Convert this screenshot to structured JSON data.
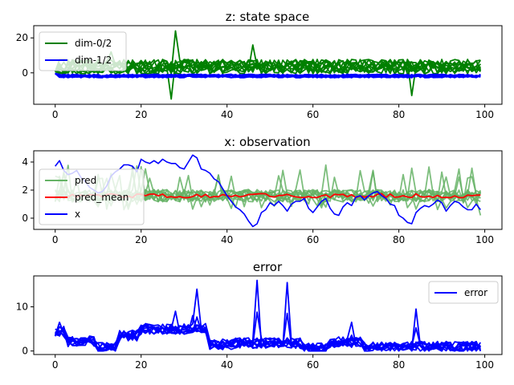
{
  "chart_data": [
    {
      "type": "line",
      "title": "z: state space",
      "xlim": [
        -5,
        104
      ],
      "ylim": [
        -18,
        27
      ],
      "xticks": [
        0,
        20,
        40,
        60,
        80,
        100
      ],
      "yticks": [
        0,
        20
      ],
      "legend": {
        "position": "upper-left",
        "entries": [
          {
            "label": "dim-0/2",
            "color": "#008000"
          },
          {
            "label": "dim-1/2",
            "color": "#0000ff"
          }
        ]
      },
      "series": [
        {
          "name": "dim-0/2",
          "color": "#008000",
          "count": 10,
          "center": 3.5,
          "spread": 4.2,
          "spikes": [
            [
              28,
              24
            ],
            [
              27,
              -15
            ],
            [
              13,
              12
            ],
            [
              46,
              16
            ],
            [
              83,
              -13
            ]
          ]
        },
        {
          "name": "dim-1/2",
          "color": "#0000ff",
          "count": 10,
          "center": -1.8,
          "spread": 1.0,
          "spikes": []
        }
      ]
    },
    {
      "type": "line",
      "title": "x: observation",
      "xlim": [
        -5,
        104
      ],
      "ylim": [
        -0.8,
        4.8
      ],
      "xticks": [
        0,
        20,
        40,
        60,
        80,
        100
      ],
      "yticks": [
        0,
        2,
        4
      ],
      "legend": {
        "position": "center-left",
        "entries": [
          {
            "label": "pred",
            "color": "#66b366"
          },
          {
            "label": "pred_mean",
            "color": "#ff0000"
          },
          {
            "label": "x",
            "color": "#0000ff"
          }
        ]
      },
      "pred_count": 10,
      "pred_color": "#66b366",
      "pred_mean_color": "#ff0000",
      "x_color": "#0000ff",
      "pred_mean_level": 1.6,
      "x_values": [
        3.7,
        4.1,
        3.4,
        3.1,
        3.2,
        3.4,
        2.9,
        2.6,
        2.2,
        2.0,
        1.8,
        1.9,
        2.3,
        3.0,
        3.3,
        3.5,
        3.8,
        3.8,
        3.7,
        3.3,
        4.2,
        4.0,
        3.9,
        4.1,
        3.9,
        4.2,
        4.0,
        3.9,
        3.9,
        3.6,
        3.5,
        4.0,
        4.5,
        4.3,
        3.5,
        3.4,
        3.2,
        2.8,
        2.6,
        2.1,
        1.6,
        1.2,
        0.8,
        0.6,
        0.3,
        -0.2,
        -0.6,
        -0.4,
        0.4,
        0.6,
        1.1,
        0.9,
        1.2,
        0.9,
        0.5,
        1.0,
        1.2,
        1.2,
        1.4,
        0.7,
        0.4,
        0.8,
        1.2,
        1.4,
        0.7,
        0.3,
        0.2,
        0.8,
        1.1,
        0.9,
        1.5,
        1.6,
        1.3,
        1.6,
        1.8,
        1.9,
        1.6,
        1.4,
        1.0,
        0.9,
        0.2,
        0.0,
        -0.3,
        -0.4,
        0.4,
        0.7,
        0.9,
        0.8,
        1.0,
        1.3,
        1.1,
        0.5,
        0.9,
        1.2,
        1.1,
        0.8,
        0.6,
        0.6,
        1.0,
        0.6
      ]
    },
    {
      "type": "line",
      "title": "error",
      "xlim": [
        -5,
        104
      ],
      "ylim": [
        -0.8,
        17
      ],
      "xticks": [
        0,
        20,
        40,
        60,
        80,
        100
      ],
      "yticks": [
        0,
        10
      ],
      "legend": {
        "position": "upper-right",
        "entries": [
          {
            "label": "error",
            "color": "#0000ff"
          }
        ]
      },
      "series_color": "#0000ff",
      "count": 10,
      "peaks": [
        [
          47,
          16
        ],
        [
          54,
          15.5
        ],
        [
          33,
          14
        ],
        [
          84,
          9.5
        ],
        [
          69,
          6.5
        ],
        [
          1,
          6.5
        ],
        [
          28,
          9
        ],
        [
          32,
          8
        ]
      ]
    }
  ]
}
